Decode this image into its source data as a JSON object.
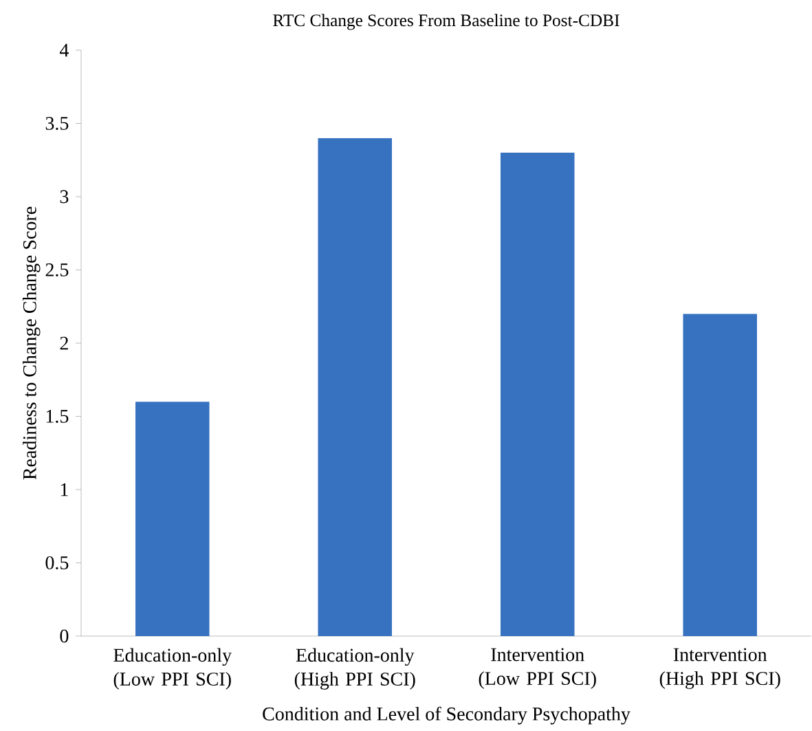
{
  "chart_data": {
    "type": "bar",
    "title": "RTC Change Scores From Baseline to Post-CDBI",
    "xlabel": "Condition and Level of Secondary Psychopathy",
    "ylabel": "Readiness to Change Change Score",
    "categories": [
      "Education-only (Low PPI SCI)",
      "Education-only (High PPI SCI)",
      "Intervention (Low PPI SCI)",
      "Intervention (High PPI SCI)"
    ],
    "values": [
      1.6,
      3.4,
      3.3,
      2.2
    ],
    "color": "#3672bf",
    "ylim": [
      0,
      4
    ],
    "yticks": [
      0,
      0.5,
      1,
      1.5,
      2,
      2.5,
      3,
      3.5,
      4
    ],
    "grid": false
  }
}
